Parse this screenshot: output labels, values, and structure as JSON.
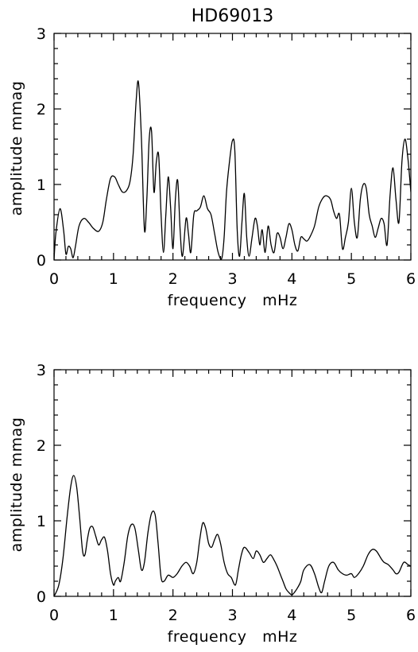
{
  "chart_data": [
    {
      "type": "line",
      "title": "HD69013",
      "xlabel": "frequency   mHz",
      "ylabel": "amplitude mmag",
      "xlim": [
        0,
        6
      ],
      "ylim": [
        0,
        3
      ],
      "xticks": [
        "0",
        "1",
        "2",
        "3",
        "4",
        "5",
        "6"
      ],
      "yticks": [
        "0",
        "1",
        "2",
        "3"
      ],
      "grid": false,
      "series": [
        {
          "x": [
            0,
            0.03,
            0.1,
            0.16,
            0.2,
            0.24,
            0.28,
            0.32,
            0.36,
            0.42,
            0.5,
            0.58,
            0.66,
            0.75,
            0.82,
            0.88,
            0.95,
            1.02,
            1.08,
            1.15,
            1.22,
            1.28,
            1.33,
            1.38,
            1.42,
            1.47,
            1.52,
            1.56,
            1.6,
            1.64,
            1.68,
            1.72,
            1.76,
            1.8,
            1.84,
            1.88,
            1.92,
            1.96,
            2.0,
            2.04,
            2.08,
            2.12,
            2.16,
            2.22,
            2.26,
            2.3,
            2.35,
            2.4,
            2.46,
            2.52,
            2.58,
            2.64,
            2.7,
            2.76,
            2.82,
            2.86,
            2.9,
            2.95,
            3.0,
            3.04,
            3.08,
            3.12,
            3.16,
            3.2,
            3.24,
            3.28,
            3.33,
            3.38,
            3.42,
            3.46,
            3.5,
            3.55,
            3.6,
            3.65,
            3.7,
            3.75,
            3.8,
            3.85,
            3.9,
            3.95,
            4.0,
            4.05,
            4.1,
            4.15,
            4.2,
            4.25,
            4.3,
            4.38,
            4.45,
            4.52,
            4.58,
            4.65,
            4.7,
            4.75,
            4.8,
            4.85,
            4.9,
            4.95,
            5.0,
            5.05,
            5.1,
            5.15,
            5.2,
            5.25,
            5.3,
            5.35,
            5.4,
            5.45,
            5.5,
            5.55,
            5.6,
            5.65,
            5.7,
            5.75,
            5.8,
            5.85,
            5.9,
            5.95,
            6.0
          ],
          "y": [
            0.0,
            0.35,
            0.68,
            0.4,
            0.08,
            0.18,
            0.15,
            0.03,
            0.18,
            0.45,
            0.55,
            0.5,
            0.42,
            0.38,
            0.5,
            0.8,
            1.08,
            1.1,
            1.0,
            0.9,
            0.92,
            1.05,
            1.4,
            2.1,
            2.35,
            1.6,
            0.4,
            0.8,
            1.6,
            1.7,
            0.9,
            1.3,
            1.38,
            0.6,
            0.1,
            0.6,
            1.1,
            0.7,
            0.15,
            0.8,
            1.05,
            0.4,
            0.05,
            0.55,
            0.35,
            0.1,
            0.6,
            0.65,
            0.7,
            0.85,
            0.68,
            0.6,
            0.35,
            0.1,
            0.02,
            0.3,
            0.9,
            1.3,
            1.58,
            1.45,
            0.4,
            0.05,
            0.5,
            0.88,
            0.3,
            0.05,
            0.3,
            0.55,
            0.45,
            0.2,
            0.4,
            0.1,
            0.45,
            0.2,
            0.1,
            0.35,
            0.3,
            0.15,
            0.3,
            0.48,
            0.4,
            0.2,
            0.12,
            0.3,
            0.28,
            0.25,
            0.3,
            0.45,
            0.7,
            0.82,
            0.85,
            0.8,
            0.65,
            0.55,
            0.6,
            0.15,
            0.3,
            0.5,
            0.95,
            0.5,
            0.3,
            0.8,
            1.0,
            0.95,
            0.6,
            0.45,
            0.3,
            0.42,
            0.55,
            0.48,
            0.2,
            0.85,
            1.22,
            0.8,
            0.5,
            1.3,
            1.6,
            1.35,
            0.9
          ]
        }
      ]
    },
    {
      "type": "line",
      "title": "",
      "xlabel": "frequency   mHz",
      "ylabel": "amplitude mmag",
      "xlim": [
        0,
        6
      ],
      "ylim": [
        0,
        3
      ],
      "xticks": [
        "0",
        "1",
        "2",
        "3",
        "4",
        "5",
        "6"
      ],
      "yticks": [
        "0",
        "1",
        "2",
        "3"
      ],
      "grid": false,
      "series": [
        {
          "x": [
            0,
            0.08,
            0.15,
            0.22,
            0.28,
            0.33,
            0.38,
            0.43,
            0.48,
            0.52,
            0.56,
            0.6,
            0.65,
            0.7,
            0.75,
            0.8,
            0.85,
            0.9,
            0.95,
            1.0,
            1.03,
            1.08,
            1.12,
            1.18,
            1.24,
            1.3,
            1.36,
            1.42,
            1.47,
            1.52,
            1.58,
            1.64,
            1.7,
            1.75,
            1.8,
            1.85,
            1.92,
            2.0,
            2.07,
            2.15,
            2.22,
            2.28,
            2.34,
            2.4,
            2.45,
            2.5,
            2.55,
            2.6,
            2.65,
            2.7,
            2.75,
            2.8,
            2.86,
            2.92,
            2.98,
            3.05,
            3.1,
            3.15,
            3.2,
            3.28,
            3.35,
            3.4,
            3.46,
            3.52,
            3.58,
            3.64,
            3.7,
            3.75,
            3.8,
            3.85,
            3.9,
            3.95,
            4.0,
            4.05,
            4.1,
            4.15,
            4.2,
            4.3,
            4.38,
            4.45,
            4.5,
            4.55,
            4.62,
            4.7,
            4.78,
            4.85,
            4.92,
            5.0,
            5.05,
            5.12,
            5.2,
            5.28,
            5.35,
            5.42,
            5.5,
            5.55,
            5.62,
            5.7,
            5.75,
            5.8,
            5.88,
            5.95,
            6.0
          ],
          "y": [
            0.0,
            0.15,
            0.5,
            1.05,
            1.45,
            1.6,
            1.45,
            1.05,
            0.6,
            0.55,
            0.75,
            0.9,
            0.92,
            0.8,
            0.68,
            0.75,
            0.78,
            0.6,
            0.3,
            0.15,
            0.2,
            0.25,
            0.2,
            0.45,
            0.8,
            0.95,
            0.9,
            0.6,
            0.35,
            0.45,
            0.85,
            1.1,
            1.08,
            0.7,
            0.25,
            0.2,
            0.28,
            0.25,
            0.3,
            0.4,
            0.45,
            0.4,
            0.3,
            0.45,
            0.75,
            0.97,
            0.9,
            0.7,
            0.65,
            0.75,
            0.82,
            0.7,
            0.45,
            0.3,
            0.25,
            0.15,
            0.35,
            0.55,
            0.65,
            0.58,
            0.5,
            0.6,
            0.55,
            0.45,
            0.5,
            0.55,
            0.48,
            0.4,
            0.3,
            0.2,
            0.1,
            0.05,
            0.02,
            0.06,
            0.12,
            0.2,
            0.35,
            0.42,
            0.3,
            0.12,
            0.05,
            0.2,
            0.4,
            0.45,
            0.35,
            0.3,
            0.28,
            0.3,
            0.25,
            0.3,
            0.4,
            0.55,
            0.62,
            0.6,
            0.5,
            0.45,
            0.42,
            0.35,
            0.3,
            0.32,
            0.45,
            0.42,
            0.4
          ]
        }
      ]
    }
  ]
}
